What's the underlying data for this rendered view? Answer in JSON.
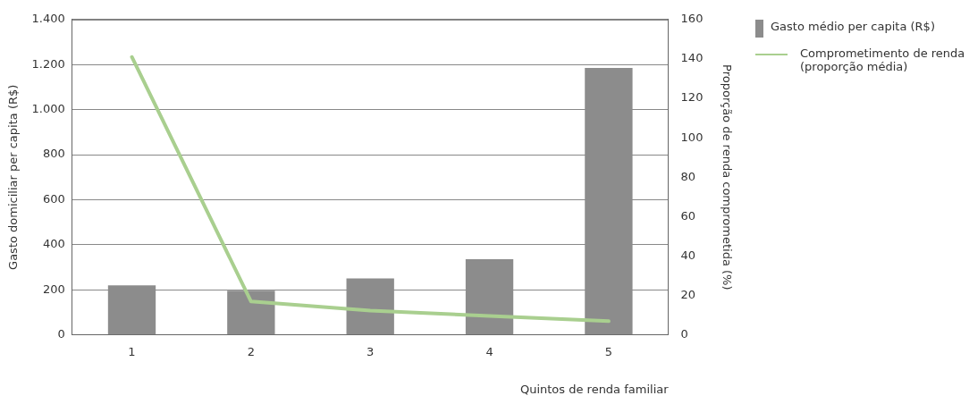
{
  "chart_data": {
    "type": "bar",
    "xlabel": "Quintos de renda familiar",
    "ylabel": "Gasto domiciliar per capita (R$)",
    "y2label": "Proporção de renda comprometida (%)",
    "categories": [
      "1",
      "2",
      "3",
      "4",
      "5"
    ],
    "series": [
      {
        "name": "Gasto médio per capita (R$)",
        "color": "#8c8c8c",
        "values": [
          220,
          197,
          251,
          336,
          1185
        ]
      },
      {
        "name": "Comprometimento de renda (proporção média)",
        "type": "line",
        "axis": "y2",
        "color": "#a9cf8f",
        "values": [
          141,
          17,
          12.4,
          9.7,
          7
        ]
      }
    ],
    "ylim": [
      0,
      1400
    ],
    "yticks": [
      0,
      200,
      400,
      600,
      800,
      {
        "value": 1000,
        "label": "1.000"
      },
      {
        "value": 1200,
        "label": "1.200"
      },
      {
        "value": 1400,
        "label": "1.400"
      }
    ],
    "y2lim": [
      0,
      160
    ],
    "y2ticks": [
      0,
      20,
      40,
      60,
      80,
      100,
      120,
      140,
      160
    ],
    "grid": "y",
    "legend": "top right",
    "marker": "none"
  }
}
